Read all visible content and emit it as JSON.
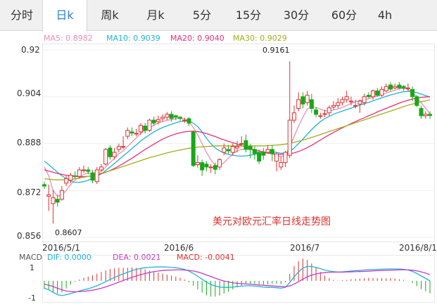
{
  "tabs": [
    {
      "label": "分时",
      "active": false
    },
    {
      "label": "日k",
      "active": true
    },
    {
      "label": "周k",
      "active": false
    },
    {
      "label": "月k",
      "active": false
    },
    {
      "label": "5分",
      "active": false
    },
    {
      "label": "15分",
      "active": false
    },
    {
      "label": "30分",
      "active": false
    },
    {
      "label": "60分",
      "active": false
    },
    {
      "label": "4h",
      "active": false
    }
  ],
  "chart_data": [
    {
      "type": "candlestick",
      "watermark": "美元对欧元汇率日线走势图",
      "title": "",
      "ylim": [
        0.856,
        0.92
      ],
      "y_ticks": [
        "0.92",
        "0.904",
        "0.888",
        "0.872",
        "0.856"
      ],
      "x_ticks": [
        "2016/5/1",
        "2016/6",
        "2016/7",
        "2016/8/1"
      ],
      "annotations": [
        {
          "text": "0.9161",
          "kind": "high"
        },
        {
          "text": "0.8607",
          "kind": "low"
        }
      ],
      "ma_legend": [
        {
          "label": "MA5: 0.8982",
          "color": "#f08db2"
        },
        {
          "label": "MA10: 0.9039",
          "color": "#1fb3d6"
        },
        {
          "label": "MA20: 0.9040",
          "color": "#e6307a"
        },
        {
          "label": "MA30: 0.9029",
          "color": "#a3ad1c"
        }
      ],
      "colors": {
        "up": "#e03030",
        "down": "#18a818"
      },
      "candles": [
        [
          0.874,
          0.8735,
          0.875,
          0.8725
        ],
        [
          0.87,
          0.8705,
          0.874,
          0.865
        ],
        [
          0.8675,
          0.8695,
          0.8722,
          0.8607
        ],
        [
          0.869,
          0.868,
          0.8705,
          0.8665
        ],
        [
          0.869,
          0.872,
          0.8735,
          0.8685
        ],
        [
          0.8745,
          0.876,
          0.877,
          0.8735
        ],
        [
          0.8755,
          0.8772,
          0.878,
          0.8745
        ],
        [
          0.877,
          0.8768,
          0.8785,
          0.876
        ],
        [
          0.8768,
          0.879,
          0.88,
          0.876
        ],
        [
          0.879,
          0.879,
          0.8805,
          0.878
        ],
        [
          0.879,
          0.8785,
          0.88,
          0.8775
        ],
        [
          0.878,
          0.8755,
          0.879,
          0.8745
        ],
        [
          0.875,
          0.879,
          0.88,
          0.8742
        ],
        [
          0.879,
          0.88,
          0.881,
          0.8785
        ],
        [
          0.881,
          0.886,
          0.8865,
          0.8805
        ],
        [
          0.8865,
          0.8835,
          0.8875,
          0.8825
        ],
        [
          0.8835,
          0.885,
          0.8865,
          0.8825
        ],
        [
          0.886,
          0.887,
          0.888,
          0.885
        ],
        [
          0.887,
          0.887,
          0.8905,
          0.886
        ],
        [
          0.8905,
          0.8925,
          0.8935,
          0.8895
        ],
        [
          0.892,
          0.8916,
          0.8935,
          0.8905
        ],
        [
          0.8915,
          0.8915,
          0.893,
          0.8905
        ],
        [
          0.892,
          0.8942,
          0.895,
          0.891
        ],
        [
          0.894,
          0.8925,
          0.895,
          0.8915
        ],
        [
          0.8925,
          0.896,
          0.8965,
          0.892
        ],
        [
          0.896,
          0.895,
          0.8972,
          0.894
        ],
        [
          0.8955,
          0.8962,
          0.8975,
          0.8945
        ],
        [
          0.8965,
          0.897,
          0.898,
          0.8955
        ],
        [
          0.897,
          0.898,
          0.8988,
          0.896
        ],
        [
          0.898,
          0.8966,
          0.899,
          0.8955
        ],
        [
          0.8975,
          0.897,
          0.8978,
          0.896
        ],
        [
          0.897,
          0.8966,
          0.8974,
          0.8958
        ],
        [
          0.896,
          0.896,
          0.8968,
          0.895
        ],
        [
          0.8965,
          0.895,
          0.897,
          0.894
        ],
        [
          0.892,
          0.8805,
          0.8925,
          0.88
        ],
        [
          0.8808,
          0.8815,
          0.884,
          0.8798
        ],
        [
          0.8815,
          0.879,
          0.8825,
          0.877
        ],
        [
          0.881,
          0.88,
          0.882,
          0.8785
        ],
        [
          0.88,
          0.88,
          0.881,
          0.878
        ],
        [
          0.8805,
          0.8792,
          0.8815,
          0.8775
        ],
        [
          0.88,
          0.8825,
          0.883,
          0.879
        ],
        [
          0.885,
          0.8865,
          0.888,
          0.884
        ],
        [
          0.886,
          0.8855,
          0.8875,
          0.8845
        ],
        [
          0.885,
          0.887,
          0.888,
          0.884
        ],
        [
          0.8865,
          0.887,
          0.889,
          0.885
        ],
        [
          0.888,
          0.888,
          0.8905,
          0.887
        ],
        [
          0.889,
          0.886,
          0.891,
          0.885
        ],
        [
          0.887,
          0.886,
          0.888,
          0.883
        ],
        [
          0.886,
          0.8845,
          0.887,
          0.8825
        ],
        [
          0.885,
          0.882,
          0.886,
          0.881
        ],
        [
          0.885,
          0.884,
          0.8865,
          0.8825
        ],
        [
          0.885,
          0.886,
          0.8875,
          0.8845
        ],
        [
          0.886,
          0.8845,
          0.8875,
          0.882
        ],
        [
          0.882,
          0.8845,
          0.885,
          0.8785
        ],
        [
          0.88,
          0.8815,
          0.8835,
          0.879
        ],
        [
          0.8815,
          0.885,
          0.8855,
          0.88
        ],
        [
          0.884,
          0.896,
          0.9161,
          0.883
        ],
        [
          0.896,
          0.8985,
          0.901,
          0.895
        ],
        [
          0.9,
          0.903,
          0.9055,
          0.899
        ],
        [
          0.904,
          0.9015,
          0.9055,
          0.9
        ],
        [
          0.902,
          0.9045,
          0.906,
          0.901
        ],
        [
          0.903,
          0.9,
          0.905,
          0.8985
        ],
        [
          0.8995,
          0.898,
          0.9005,
          0.897
        ],
        [
          0.8975,
          0.8975,
          0.8985,
          0.8965
        ],
        [
          0.898,
          0.8982,
          0.8995,
          0.897
        ],
        [
          0.8985,
          0.9002,
          0.901,
          0.8975
        ],
        [
          0.9005,
          0.901,
          0.9025,
          0.8995
        ],
        [
          0.901,
          0.902,
          0.9035,
          0.9
        ],
        [
          0.902,
          0.903,
          0.904,
          0.901
        ],
        [
          0.903,
          0.904,
          0.906,
          0.902
        ],
        [
          0.9025,
          0.9025,
          0.904,
          0.901
        ],
        [
          0.901,
          0.901,
          0.903,
          0.9
        ],
        [
          0.9015,
          0.9025,
          0.903,
          0.8985
        ],
        [
          0.902,
          0.904,
          0.905,
          0.901
        ],
        [
          0.9045,
          0.904,
          0.9055,
          0.9035
        ],
        [
          0.904,
          0.906,
          0.9065,
          0.903
        ],
        [
          0.906,
          0.9045,
          0.907,
          0.904
        ],
        [
          0.9045,
          0.9065,
          0.9075,
          0.904
        ],
        [
          0.906,
          0.9075,
          0.9085,
          0.9055
        ],
        [
          0.908,
          0.9066,
          0.909,
          0.906
        ],
        [
          0.907,
          0.9075,
          0.9085,
          0.9065
        ],
        [
          0.908,
          0.907,
          0.909,
          0.9065
        ],
        [
          0.9075,
          0.907,
          0.908,
          0.906
        ],
        [
          0.907,
          0.907,
          0.9085,
          0.906
        ],
        [
          0.9065,
          0.904,
          0.9075,
          0.9025
        ],
        [
          0.904,
          0.901,
          0.9045,
          0.9005
        ],
        [
          0.9,
          0.8975,
          0.901,
          0.8965
        ],
        [
          0.8975,
          0.898,
          0.899,
          0.8965
        ],
        [
          0.898,
          0.8976,
          0.899,
          0.8965
        ]
      ],
      "ma_lines": {
        "MA5": [
          0.88,
          0.877,
          0.872,
          0.87,
          0.8705,
          0.872,
          0.874,
          0.8755,
          0.8765,
          0.8775,
          0.878,
          0.8775,
          0.878,
          0.8785,
          0.88,
          0.8815,
          0.883,
          0.8845,
          0.8855,
          0.887,
          0.8885,
          0.89,
          0.8915,
          0.8925,
          0.8935,
          0.8942,
          0.895,
          0.8955,
          0.896,
          0.8962,
          0.8965,
          0.8967,
          0.8964,
          0.8955,
          0.8935,
          0.891,
          0.888,
          0.885,
          0.8825,
          0.8805,
          0.8805,
          0.8815,
          0.883,
          0.8845,
          0.8855,
          0.886,
          0.8862,
          0.886,
          0.8855,
          0.885,
          0.8848,
          0.8847,
          0.8845,
          0.884,
          0.8835,
          0.884,
          0.887,
          0.8905,
          0.894,
          0.897,
          0.8998,
          0.9005,
          0.9003,
          0.8998,
          0.8992,
          0.8992,
          0.8995,
          0.8998,
          0.9003,
          0.901,
          0.9017,
          0.9023,
          0.9027,
          0.903,
          0.9033,
          0.9038,
          0.9042,
          0.9047,
          0.9052,
          0.9058,
          0.9062,
          0.9067,
          0.9068,
          0.9065,
          0.9055,
          0.904,
          0.902,
          0.9,
          0.8982
        ],
        "MA10": [
          0.882,
          0.8808,
          0.8795,
          0.8782,
          0.877,
          0.876,
          0.8752,
          0.8748,
          0.8748,
          0.875,
          0.8755,
          0.876,
          0.8768,
          0.8777,
          0.8788,
          0.88,
          0.8812,
          0.8825,
          0.8838,
          0.885,
          0.8863,
          0.8876,
          0.8889,
          0.89,
          0.891,
          0.892,
          0.8928,
          0.8935,
          0.8941,
          0.8946,
          0.8951,
          0.8955,
          0.8957,
          0.8957,
          0.895,
          0.8938,
          0.892,
          0.8898,
          0.888,
          0.8865,
          0.8855,
          0.8848,
          0.8843,
          0.884,
          0.8838,
          0.8837,
          0.8838,
          0.884,
          0.8843,
          0.8847,
          0.885,
          0.8852,
          0.8852,
          0.885,
          0.8847,
          0.8847,
          0.8853,
          0.8865,
          0.888,
          0.8895,
          0.8912,
          0.8928,
          0.8942,
          0.8955,
          0.8965,
          0.8973,
          0.898,
          0.8986,
          0.8991,
          0.8996,
          0.9001,
          0.9006,
          0.9011,
          0.9016,
          0.9021,
          0.9026,
          0.9031,
          0.9036,
          0.9041,
          0.9046,
          0.905,
          0.9054,
          0.9057,
          0.9058,
          0.9057,
          0.9054,
          0.9049,
          0.9044,
          0.9039
        ],
        "MA20": [
          0.879,
          0.8786,
          0.8782,
          0.8778,
          0.8775,
          0.8772,
          0.877,
          0.8768,
          0.8767,
          0.8767,
          0.8768,
          0.877,
          0.8773,
          0.8777,
          0.8782,
          0.8788,
          0.8795,
          0.8803,
          0.8812,
          0.8821,
          0.883,
          0.884,
          0.885,
          0.886,
          0.8869,
          0.8878,
          0.8887,
          0.8895,
          0.8902,
          0.8908,
          0.8913,
          0.8917,
          0.892,
          0.8922,
          0.8922,
          0.8921,
          0.8918,
          0.8914,
          0.8909,
          0.8904,
          0.8898,
          0.8893,
          0.8888,
          0.8883,
          0.8878,
          0.8873,
          0.8868,
          0.8863,
          0.8859,
          0.8855,
          0.8852,
          0.8849,
          0.8846,
          0.8844,
          0.8843,
          0.8843,
          0.8845,
          0.8848,
          0.8853,
          0.8859,
          0.8866,
          0.8874,
          0.8883,
          0.8892,
          0.8901,
          0.891,
          0.8918,
          0.8926,
          0.8934,
          0.8941,
          0.8948,
          0.8955,
          0.8962,
          0.8968,
          0.8975,
          0.8981,
          0.8988,
          0.8994,
          0.9,
          0.9006,
          0.9012,
          0.9018,
          0.9023,
          0.9028,
          0.9032,
          0.9035,
          0.9038,
          0.9039,
          0.904
        ],
        "MA30": [
          0.876,
          0.8758,
          0.8757,
          0.8756,
          0.8756,
          0.8757,
          0.8758,
          0.876,
          0.8762,
          0.8765,
          0.8768,
          0.8771,
          0.8775,
          0.8779,
          0.8783,
          0.8787,
          0.8792,
          0.8797,
          0.8802,
          0.8807,
          0.8812,
          0.8817,
          0.8822,
          0.8827,
          0.8832,
          0.8836,
          0.884,
          0.8844,
          0.8848,
          0.8852,
          0.8855,
          0.8858,
          0.8861,
          0.8864,
          0.8866,
          0.8868,
          0.8869,
          0.887,
          0.8871,
          0.8872,
          0.8872,
          0.8872,
          0.8872,
          0.8872,
          0.8872,
          0.8872,
          0.8872,
          0.8872,
          0.8872,
          0.8872,
          0.8872,
          0.8873,
          0.8874,
          0.8875,
          0.8876,
          0.8878,
          0.8881,
          0.8884,
          0.8888,
          0.8892,
          0.8896,
          0.8901,
          0.8906,
          0.8911,
          0.8916,
          0.8921,
          0.8926,
          0.8931,
          0.8936,
          0.8941,
          0.8946,
          0.8951,
          0.8956,
          0.8961,
          0.8966,
          0.8971,
          0.8976,
          0.8981,
          0.8986,
          0.8991,
          0.8996,
          0.9001,
          0.9006,
          0.9011,
          0.9015,
          0.9019,
          0.9023,
          0.9026,
          0.9029
        ]
      }
    },
    {
      "type": "macd",
      "label": "MACD",
      "legend": [
        {
          "label": "DIF: 0.0000",
          "color": "#1fb3d6"
        },
        {
          "label": "DEA: 0.0021",
          "color": "#c839c8"
        },
        {
          "label": "MACD: -0.0041",
          "color": "#e03030"
        }
      ],
      "y_ticks": [
        "1",
        "-1"
      ],
      "ylim": [
        -1.2,
        1.2
      ],
      "dif": [
        -0.45,
        -0.55,
        -0.7,
        -0.85,
        -0.9,
        -0.85,
        -0.78,
        -0.7,
        -0.62,
        -0.55,
        -0.48,
        -0.4,
        -0.3,
        -0.18,
        -0.05,
        0.08,
        0.2,
        0.32,
        0.42,
        0.52,
        0.62,
        0.7,
        0.76,
        0.8,
        0.82,
        0.84,
        0.85,
        0.85,
        0.84,
        0.82,
        0.8,
        0.76,
        0.7,
        0.6,
        0.45,
        0.28,
        0.1,
        -0.08,
        -0.22,
        -0.32,
        -0.38,
        -0.4,
        -0.4,
        -0.38,
        -0.35,
        -0.32,
        -0.3,
        -0.3,
        -0.32,
        -0.35,
        -0.38,
        -0.4,
        -0.4,
        -0.42,
        -0.45,
        -0.4,
        -0.1,
        0.25,
        0.55,
        0.78,
        0.88,
        0.88,
        0.82,
        0.74,
        0.66,
        0.6,
        0.56,
        0.54,
        0.55,
        0.57,
        0.6,
        0.62,
        0.64,
        0.66,
        0.68,
        0.69,
        0.7,
        0.71,
        0.72,
        0.73,
        0.73,
        0.72,
        0.7,
        0.66,
        0.58,
        0.45,
        0.3,
        0.15,
        0.0
      ],
      "dea": [
        -0.2,
        -0.26,
        -0.35,
        -0.45,
        -0.55,
        -0.62,
        -0.66,
        -0.67,
        -0.66,
        -0.64,
        -0.61,
        -0.57,
        -0.52,
        -0.45,
        -0.37,
        -0.28,
        -0.18,
        -0.08,
        0.02,
        0.12,
        0.21,
        0.3,
        0.38,
        0.45,
        0.51,
        0.56,
        0.6,
        0.63,
        0.65,
        0.66,
        0.67,
        0.67,
        0.66,
        0.64,
        0.6,
        0.54,
        0.46,
        0.36,
        0.26,
        0.16,
        0.07,
        -0.01,
        -0.07,
        -0.12,
        -0.15,
        -0.17,
        -0.19,
        -0.21,
        -0.23,
        -0.25,
        -0.27,
        -0.29,
        -0.31,
        -0.33,
        -0.35,
        -0.36,
        -0.31,
        -0.2,
        -0.05,
        0.1,
        0.24,
        0.35,
        0.42,
        0.47,
        0.5,
        0.52,
        0.53,
        0.53,
        0.53,
        0.54,
        0.55,
        0.56,
        0.57,
        0.58,
        0.59,
        0.61,
        0.62,
        0.63,
        0.64,
        0.65,
        0.66,
        0.67,
        0.67,
        0.67,
        0.65,
        0.61,
        0.55,
        0.47,
        0.38
      ]
    }
  ]
}
